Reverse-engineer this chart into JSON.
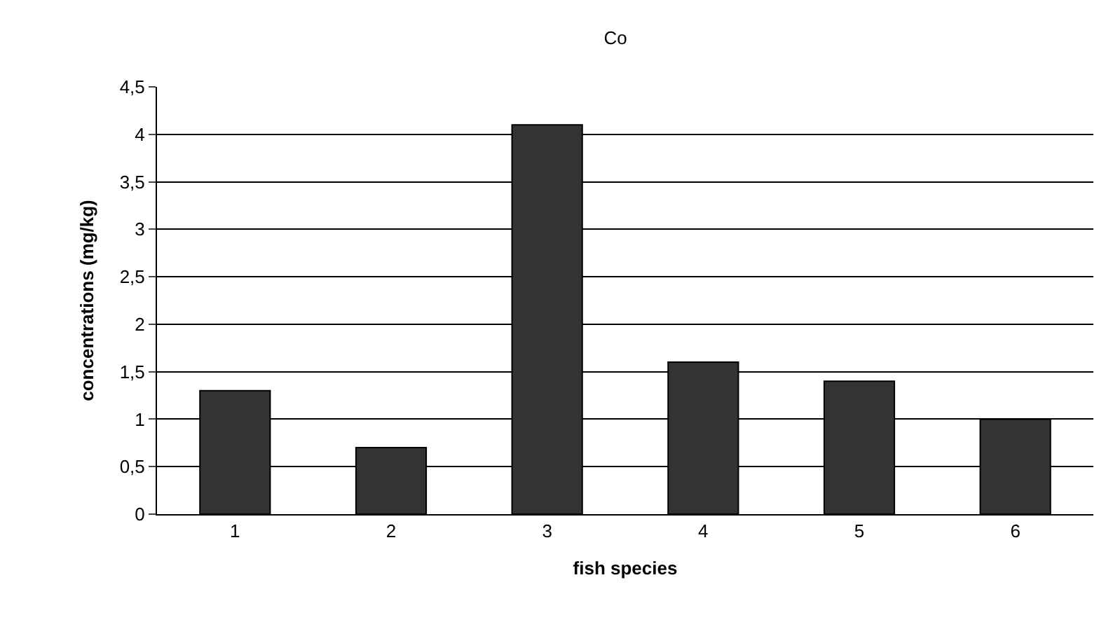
{
  "chart_data": {
    "type": "bar",
    "title": "Co",
    "xlabel": "fish species",
    "ylabel": "concentrations (mg/kg)",
    "categories": [
      "1",
      "2",
      "3",
      "4",
      "5",
      "6"
    ],
    "values": [
      1.3,
      0.7,
      4.1,
      1.6,
      1.4,
      1.0
    ],
    "color": "#333333",
    "ylim": [
      0,
      4.5
    ],
    "yticks": [
      0,
      {
        "value": 0.5,
        "label": "0,5"
      },
      1,
      {
        "value": 1.5,
        "label": "1,5"
      },
      2,
      {
        "value": 2.5,
        "label": "2,5"
      },
      3,
      {
        "value": 3.5,
        "label": "3,5"
      },
      4,
      {
        "value": 4.5,
        "label": "4,5"
      }
    ],
    "grid": "y"
  }
}
